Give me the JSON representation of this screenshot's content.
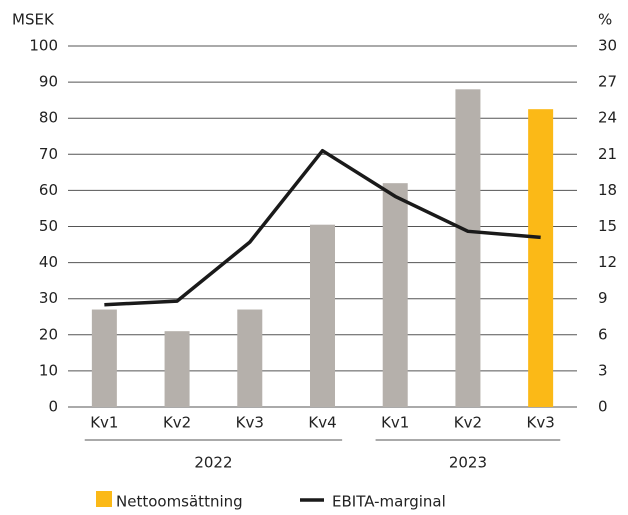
{
  "chart_data": {
    "type": "bar-line",
    "y_label": "MSEK",
    "y2_label": "%",
    "categories": [
      "Kv1",
      "Kv2",
      "Kv3",
      "Kv4",
      "Kv1",
      "Kv2",
      "Kv3"
    ],
    "group_labels": [
      "2022",
      "2023"
    ],
    "group_sizes": [
      4,
      3
    ],
    "series": [
      {
        "name": "Nettoomsättning",
        "type": "bar",
        "color": "#fbb917",
        "colors": [
          "#b5b0ab",
          "#b5b0ab",
          "#b5b0ab",
          "#b5b0ab",
          "#b5b0ab",
          "#b5b0ab",
          "#fbb917"
        ],
        "values": [
          27,
          21,
          27,
          50.5,
          62,
          88,
          82.5
        ]
      },
      {
        "name": "EBITA-marginal",
        "type": "line",
        "axis": "y2",
        "color": "#1a1a1a",
        "values": [
          8.5,
          8.8,
          13.7,
          21.3,
          17.5,
          14.6,
          14.1
        ]
      }
    ],
    "ylim": [
      0,
      100
    ],
    "yticks": [
      0,
      10,
      20,
      30,
      40,
      50,
      60,
      70,
      80,
      90,
      100
    ],
    "y2lim": [
      0,
      30
    ],
    "y2ticks": [
      0,
      3,
      6,
      9,
      12,
      15,
      18,
      21,
      24,
      27,
      30
    ],
    "grid": true,
    "legend": "bottom"
  }
}
